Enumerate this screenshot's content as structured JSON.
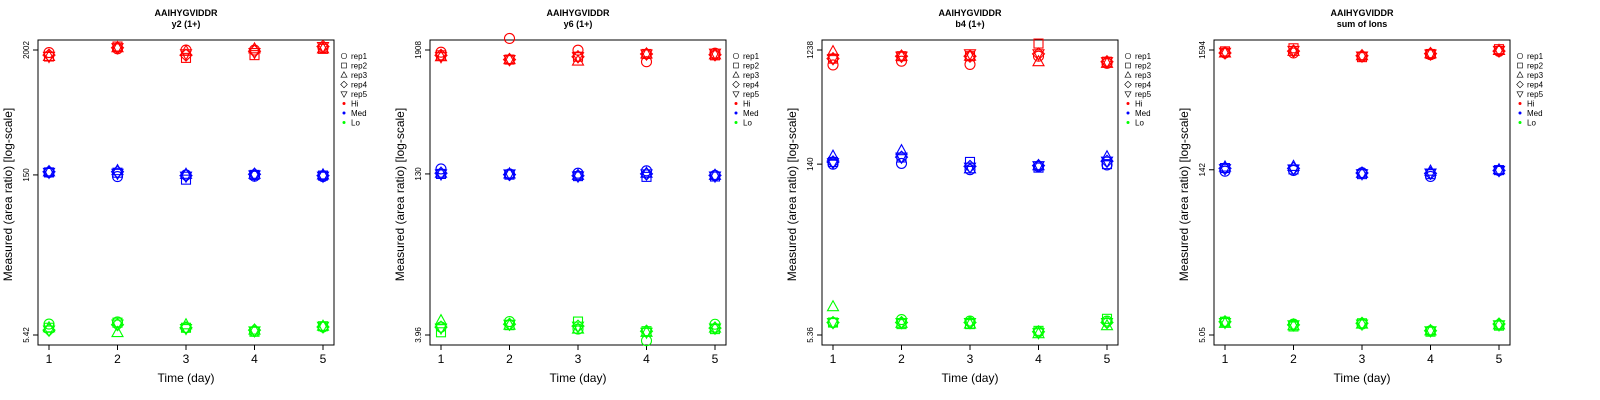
{
  "chart_data": [
    {
      "type": "scatter",
      "title": "AAIHYGVIDDR",
      "subtitle": "y2 (1+)",
      "xlabel": "Time (day)",
      "ylabel": "Measured (area ratio) [log-scale]",
      "log_y": true,
      "ylim": [
        5.42,
        2002
      ],
      "y_tick_labels": [
        "5.42",
        "150",
        "2002"
      ],
      "x_ticks": [
        1,
        2,
        3,
        4,
        5
      ],
      "legend": [
        "rep1",
        "rep2",
        "rep3",
        "rep4",
        "rep5",
        "Hi",
        "Med",
        "Lo"
      ],
      "legend_position": "right",
      "series": [
        {
          "name": "Hi",
          "color": "#ff0000",
          "reps": [
            [
              1900,
              2050,
              2000,
              2000,
              2100
            ],
            [
              1750,
              2150,
              1700,
              1800,
              2050
            ],
            [
              1750,
              2100,
              1950,
              2050,
              2050
            ],
            [
              1800,
              2100,
              1800,
              1950,
              2150
            ],
            [
              1750,
              2100,
              1850,
              1900,
              2150
            ]
          ]
        },
        {
          "name": "Med",
          "color": "#0000ff",
          "reps": [
            [
              158,
              145,
              150,
              146,
              145
            ],
            [
              158,
              157,
              136,
              150,
              148
            ],
            [
              160,
              164,
              152,
              152,
              150
            ],
            [
              160,
              160,
              148,
              152,
              148
            ],
            [
              158,
              155,
              146,
              150,
              146
            ]
          ]
        },
        {
          "name": "Lo",
          "color": "#00ff00",
          "reps": [
            [
              6.8,
              7.1,
              6.3,
              5.85,
              6.4
            ],
            [
              6.3,
              7.0,
              6.3,
              5.8,
              6.5
            ],
            [
              6.3,
              5.7,
              6.7,
              6.0,
              6.5
            ],
            [
              6.0,
              6.7,
              6.3,
              6.0,
              6.4
            ],
            [
              6.0,
              6.8,
              6.2,
              5.9,
              6.5
            ]
          ]
        }
      ]
    },
    {
      "type": "scatter",
      "title": "AAIHYGVIDDR",
      "subtitle": "y6 (1+)",
      "xlabel": "Time (day)",
      "ylabel": "Measured (area ratio) [log-scale]",
      "log_y": true,
      "ylim": [
        3.96,
        1908
      ],
      "y_tick_labels": [
        "3.96",
        "130",
        "1908"
      ],
      "x_ticks": [
        1,
        2,
        3,
        4,
        5
      ],
      "legend": [
        "rep1",
        "rep2",
        "rep3",
        "rep4",
        "rep5",
        "Hi",
        "Med",
        "Lo"
      ],
      "legend_position": "right",
      "series": [
        {
          "name": "Hi",
          "color": "#ff0000",
          "reps": [
            [
              1820,
              2450,
              1900,
              1480,
              1780
            ],
            [
              1700,
              1550,
              1650,
              1750,
              1700
            ],
            [
              1650,
              1550,
              1500,
              1750,
              1720
            ],
            [
              1700,
              1550,
              1650,
              1750,
              1720
            ],
            [
              1650,
              1550,
              1650,
              1750,
              1780
            ]
          ]
        },
        {
          "name": "Med",
          "color": "#0000ff",
          "reps": [
            [
              145,
              130,
              132,
              139,
              126
            ],
            [
              130,
              128,
              124,
              122,
              123
            ],
            [
              132,
              130,
              126,
              132,
              126
            ],
            [
              132,
              128,
              125,
              130,
              126
            ],
            [
              130,
              130,
              124,
              130,
              124
            ]
          ]
        },
        {
          "name": "Lo",
          "color": "#00ff00",
          "reps": [
            [
              4.7,
              5.3,
              4.5,
              3.5,
              5.0
            ],
            [
              4.2,
              4.9,
              5.3,
              4.3,
              4.5
            ],
            [
              5.4,
              4.9,
              4.5,
              4.2,
              4.6
            ],
            [
              4.7,
              5.0,
              4.8,
              4.3,
              4.6
            ],
            [
              4.6,
              5.0,
              4.8,
              4.2,
              4.6
            ]
          ]
        }
      ]
    },
    {
      "type": "scatter",
      "title": "AAIHYGVIDDR",
      "subtitle": "b4 (1+)",
      "xlabel": "Time (day)",
      "ylabel": "Measured (area ratio) [log-scale]",
      "log_y": true,
      "ylim": [
        5.36,
        1238
      ],
      "y_tick_labels": [
        "5.36",
        "140",
        "1238"
      ],
      "x_ticks": [
        1,
        2,
        3,
        4,
        5
      ],
      "legend": [
        "rep1",
        "rep2",
        "rep3",
        "rep4",
        "rep5",
        "Hi",
        "Med",
        "Lo"
      ],
      "legend_position": "right",
      "series": [
        {
          "name": "Hi",
          "color": "#ff0000",
          "reps": [
            [
              930,
              1000,
              940,
              1100,
              960
            ],
            [
              1050,
              1100,
              1100,
              1400,
              990
            ],
            [
              1200,
              1100,
              1100,
              990,
              960
            ],
            [
              1050,
              1100,
              1100,
              1150,
              990
            ],
            [
              1050,
              1100,
              1150,
              1150,
              990
            ]
          ]
        },
        {
          "name": "Med",
          "color": "#0000ff",
          "reps": [
            [
              140,
              142,
              126,
              134,
              138
            ],
            [
              146,
              159,
              146,
              131,
              140
            ],
            [
              163,
              181,
              128,
              136,
              161
            ],
            [
              146,
              160,
              134,
              136,
              148
            ],
            [
              144,
              160,
              132,
              136,
              148
            ]
          ]
        },
        {
          "name": "Lo",
          "color": "#00ff00",
          "reps": [
            [
              6.8,
              7.2,
              7.0,
              5.7,
              7.0
            ],
            [
              6.8,
              6.6,
              6.6,
              5.8,
              7.3
            ],
            [
              9.2,
              6.7,
              6.6,
              5.5,
              6.4
            ],
            [
              6.8,
              6.8,
              6.8,
              5.7,
              6.8
            ],
            [
              6.8,
              6.8,
              6.8,
              5.6,
              6.8
            ]
          ]
        }
      ]
    },
    {
      "type": "scatter",
      "title": "AAIHYGVIDDR",
      "subtitle": "sum of Ions",
      "xlabel": "Time (day)",
      "ylabel": "Measured (area ratio) [log-scale]",
      "log_y": true,
      "ylim": [
        5.05,
        1594
      ],
      "y_tick_labels": [
        "5.05",
        "142",
        "1594"
      ],
      "x_ticks": [
        1,
        2,
        3,
        4,
        5
      ],
      "legend": [
        "rep1",
        "rep2",
        "rep3",
        "rep4",
        "rep5",
        "Hi",
        "Med",
        "Lo"
      ],
      "legend_position": "right",
      "series": [
        {
          "name": "Hi",
          "color": "#ff0000",
          "reps": [
            [
              1500,
              1500,
              1400,
              1450,
              1550
            ],
            [
              1550,
              1650,
              1380,
              1470,
              1620
            ],
            [
              1500,
              1550,
              1420,
              1480,
              1580
            ],
            [
              1500,
              1560,
              1420,
              1480,
              1560
            ],
            [
              1520,
              1580,
              1410,
              1470,
              1580
            ]
          ]
        },
        {
          "name": "Med",
          "color": "#0000ff",
          "reps": [
            [
              138,
              140,
              134,
              124,
              140
            ],
            [
              147,
              143,
              130,
              130,
              141
            ],
            [
              150,
              152,
              132,
              138,
              142
            ],
            [
              146,
              146,
              133,
              132,
              140
            ],
            [
              145,
              144,
              131,
              133,
              140
            ]
          ]
        },
        {
          "name": "Lo",
          "color": "#00ff00",
          "reps": [
            [
              6.6,
              6.3,
              6.3,
              5.5,
              6.2
            ],
            [
              6.6,
              6.0,
              6.4,
              5.4,
              6.1
            ],
            [
              6.4,
              6.1,
              6.3,
              5.5,
              6.2
            ],
            [
              6.6,
              6.2,
              6.4,
              5.5,
              6.3
            ],
            [
              6.5,
              6.2,
              6.3,
              5.5,
              6.2
            ]
          ]
        }
      ]
    }
  ]
}
